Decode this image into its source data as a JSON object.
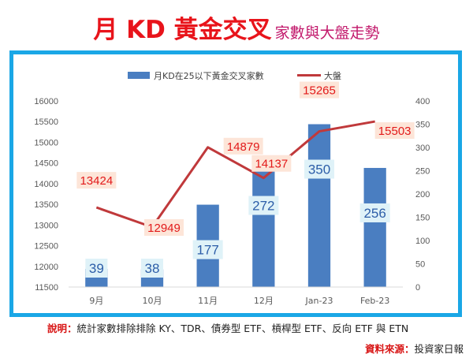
{
  "header": {
    "title": "月 KD 黃金交叉",
    "subtitle": "家數與大盤走勢"
  },
  "footer": {
    "note_label": "說明：",
    "note_text": "統計家數排除排除 KY、TDR、債券型 ETF、槓桿型 ETF、反向 ETF 與 ETN",
    "source_label": "資料來源：",
    "source_text": "投資家日報"
  },
  "colors": {
    "bar": "#4a7ec1",
    "line": "#c0393b",
    "bar_label_bg": "#dff2f8",
    "line_label_bg": "#fde5d8",
    "frame": "#1aa7e6",
    "title": "#e8141b",
    "subtitle": "#c2186b"
  },
  "chart_data": {
    "type": "bar",
    "categories": [
      "9月",
      "10月",
      "11月",
      "12月",
      "Jan-23",
      "Feb-23"
    ],
    "series": [
      {
        "name": "月KD在25以下黃金交叉家數",
        "type": "bar",
        "axis": "right",
        "values": [
          39,
          38,
          177,
          272,
          350,
          256
        ],
        "labels": [
          "39",
          "38",
          "177",
          "272",
          "350",
          "256"
        ]
      },
      {
        "name": "大盤",
        "type": "line",
        "axis": "left",
        "values": [
          13424,
          12949,
          14879,
          14137,
          15265,
          15503
        ],
        "labels": [
          "13424",
          "12949",
          "14879",
          "14137",
          "15265",
          "15503"
        ]
      }
    ],
    "y_left": {
      "ylim": [
        11500,
        16000
      ],
      "ticks": [
        "11500",
        "12000",
        "12500",
        "13000",
        "13500",
        "14000",
        "14500",
        "15000",
        "15500",
        "16000"
      ]
    },
    "y_right": {
      "ylim": [
        0,
        400
      ],
      "ticks": [
        "0",
        "50",
        "100",
        "150",
        "200",
        "250",
        "300",
        "350",
        "400"
      ]
    },
    "legend": "top",
    "grid": false
  }
}
